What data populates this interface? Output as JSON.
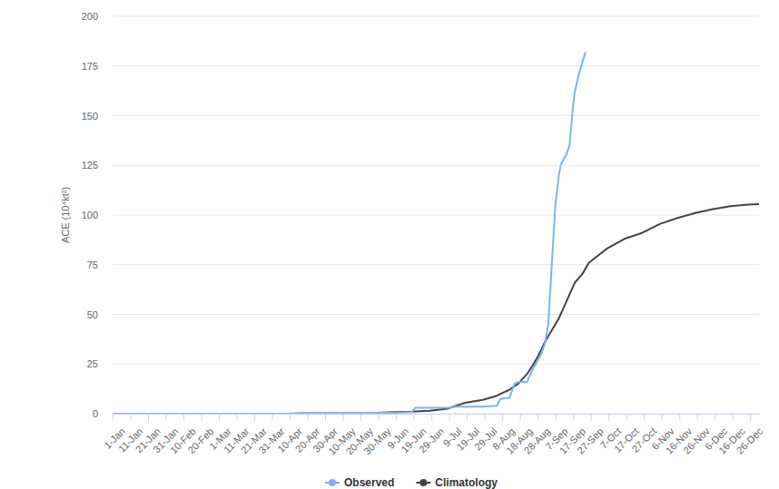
{
  "chart_data": {
    "type": "line",
    "y_label": "ACE (10⁴kt²)",
    "x": [
      1,
      100,
      110,
      120,
      130,
      140,
      150,
      160,
      170,
      172,
      180,
      190,
      195,
      200,
      210,
      218,
      220,
      225,
      228,
      230,
      235,
      238,
      240,
      243,
      245,
      247,
      249,
      251,
      253,
      254,
      255,
      257,
      259,
      261,
      262,
      264,
      266,
      268,
      270,
      280,
      290,
      300,
      310,
      320,
      330,
      340,
      350,
      360,
      366
    ],
    "series": [
      {
        "name": "Observed",
        "color": "#7cb5ec",
        "values": [
          0,
          0,
          0.5,
          0.5,
          0.5,
          0.5,
          0.5,
          0.5,
          0.8,
          3,
          3,
          3,
          3.5,
          3.5,
          3.5,
          4,
          7.5,
          8,
          15,
          16,
          16,
          22,
          25,
          30,
          35,
          45,
          75,
          105,
          120,
          125,
          127,
          130,
          135,
          155,
          162,
          170,
          176,
          182,
          null,
          null,
          null,
          null,
          null,
          null,
          null,
          null,
          null,
          null,
          null
        ]
      },
      {
        "name": "Climatology",
        "color": "#434348",
        "values": [
          0,
          0,
          0.2,
          0.3,
          0.3,
          0.4,
          0.5,
          0.8,
          1,
          1.1,
          1.5,
          2.5,
          4,
          5.5,
          7,
          9,
          10,
          12,
          14,
          15,
          20,
          24,
          27,
          32,
          36,
          39,
          42,
          45,
          48,
          50,
          52,
          56,
          60,
          64,
          66,
          68,
          70,
          73,
          76,
          83,
          88,
          91,
          95.5,
          98.5,
          101,
          103,
          104.5,
          105.2,
          105.5
        ]
      }
    ],
    "xlim": [
      1,
      366
    ],
    "xticks": [
      {
        "value": 1,
        "label": "1-Jan"
      },
      {
        "value": 11,
        "label": "11-Jan"
      },
      {
        "value": 21,
        "label": "21-Jan"
      },
      {
        "value": 31,
        "label": "31-Jan"
      },
      {
        "value": 41,
        "label": "10-Feb"
      },
      {
        "value": 51,
        "label": "20-Feb"
      },
      {
        "value": 61,
        "label": "1-Mar"
      },
      {
        "value": 71,
        "label": "11-Mar"
      },
      {
        "value": 81,
        "label": "21-Mar"
      },
      {
        "value": 91,
        "label": "31-Mar"
      },
      {
        "value": 101,
        "label": "10-Apr"
      },
      {
        "value": 111,
        "label": "20-Apr"
      },
      {
        "value": 121,
        "label": "30-Apr"
      },
      {
        "value": 131,
        "label": "10-May"
      },
      {
        "value": 141,
        "label": "20-May"
      },
      {
        "value": 151,
        "label": "30-May"
      },
      {
        "value": 161,
        "label": "9-Jun"
      },
      {
        "value": 171,
        "label": "19-Jun"
      },
      {
        "value": 181,
        "label": "29-Jun"
      },
      {
        "value": 191,
        "label": "9-Jul"
      },
      {
        "value": 201,
        "label": "19-Jul"
      },
      {
        "value": 211,
        "label": "29-Jul"
      },
      {
        "value": 221,
        "label": "8-Aug"
      },
      {
        "value": 231,
        "label": "18-Aug"
      },
      {
        "value": 241,
        "label": "28-Aug"
      },
      {
        "value": 251,
        "label": "7-Sep"
      },
      {
        "value": 261,
        "label": "17-Sep"
      },
      {
        "value": 271,
        "label": "27-Sep"
      },
      {
        "value": 281,
        "label": "7-Oct"
      },
      {
        "value": 291,
        "label": "17-Oct"
      },
      {
        "value": 301,
        "label": "27-Oct"
      },
      {
        "value": 311,
        "label": "6-Nov"
      },
      {
        "value": 321,
        "label": "16-Nov"
      },
      {
        "value": 331,
        "label": "26-Nov"
      },
      {
        "value": 341,
        "label": "6-Dec"
      },
      {
        "value": 351,
        "label": "16-Dec"
      },
      {
        "value": 361,
        "label": "26-Dec"
      }
    ],
    "ylim": [
      0,
      200
    ],
    "yticks": [
      0,
      25,
      50,
      75,
      100,
      125,
      150,
      175,
      200
    ],
    "grid": true,
    "legend": "bottom"
  }
}
